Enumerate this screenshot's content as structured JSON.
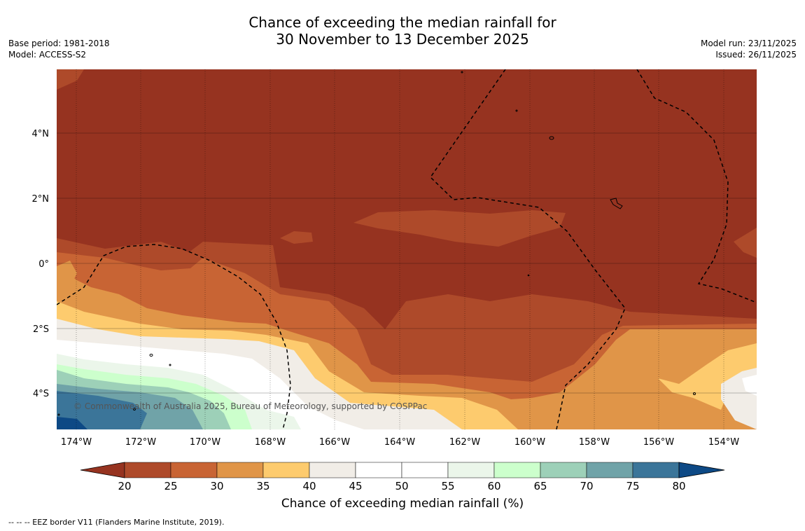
{
  "title": {
    "line1": "Chance of exceeding the median rainfall for",
    "line2": "30 November to 13 December 2025"
  },
  "meta_left": {
    "base_period": "Base period: 1981-2018",
    "model": "Model: ACCESS-S2"
  },
  "meta_right": {
    "model_run": "Model run: 23/11/2025",
    "issued": "Issued: 26/11/2025"
  },
  "map": {
    "x_ticks": [
      "174°W",
      "172°W",
      "170°W",
      "168°W",
      "166°W",
      "164°W",
      "162°W",
      "160°W",
      "158°W",
      "156°W",
      "154°W"
    ],
    "y_ticks": [
      "4°N",
      "2°N",
      "0°",
      "2°S",
      "4°S"
    ],
    "watermark": "© Commonwealth of Australia 2025, Bureau of Meteorology, supported by COSPPac"
  },
  "colorbar": {
    "ticks": [
      "20",
      "25",
      "30",
      "35",
      "40",
      "45",
      "50",
      "55",
      "60",
      "65",
      "70",
      "75",
      "80"
    ],
    "colors": [
      "#963320",
      "#ae4a2a",
      "#c86434",
      "#e09548",
      "#fdcb6e",
      "#f1ede7",
      "#ffffff",
      "#ffffff",
      "#ebf6ea",
      "#ccffcc",
      "#9dd0b8",
      "#70a3a8",
      "#3b7599",
      "#0d4985"
    ],
    "label": "Chance of exceeding median rainfall (%)"
  },
  "footnote": "-- -- -- EEZ border V11 (Flanders Marine Institute, 2019)."
}
